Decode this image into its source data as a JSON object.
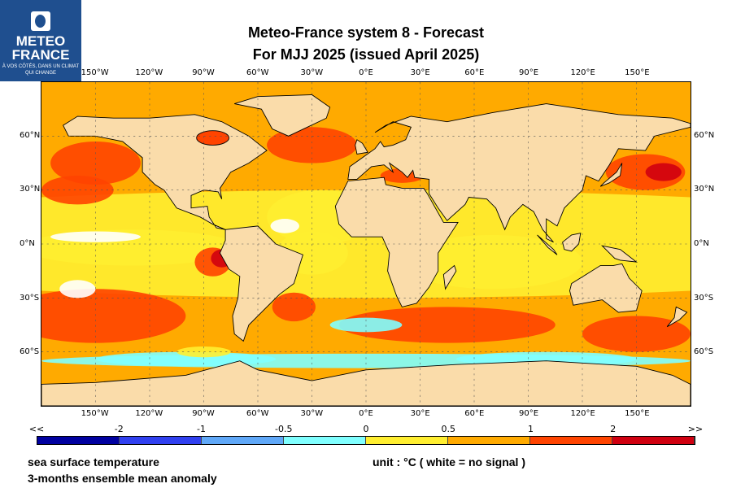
{
  "logo": {
    "name_line1": "METEO",
    "name_line2": "FRANCE",
    "tagline": "À VOS CÔTÉS, DANS UN CLIMAT QUI CHANGE"
  },
  "title": {
    "line1": "Meteo-France system 8  -  Forecast",
    "line2": "For MJJ 2025      (issued April 2025)"
  },
  "lon_labels": [
    "150°W",
    "120°W",
    "90°W",
    "60°W",
    "30°W",
    "0°E",
    "30°E",
    "60°E",
    "90°E",
    "120°E",
    "150°E"
  ],
  "lat_labels": [
    "60°N",
    "30°N",
    "0°N",
    "30°S",
    "60°S"
  ],
  "colorbar": {
    "labels": [
      "<<",
      "-2",
      "-1",
      "-0.5",
      "0",
      "0.5",
      "1",
      "2",
      ">>"
    ],
    "colors": [
      "#0000a0",
      "#3040f0",
      "#60a8f8",
      "#80ffff",
      "#ffee30",
      "#ffaa00",
      "#ff4400",
      "#d00010"
    ]
  },
  "map_colors": {
    "land": "#fadcaa",
    "white": "#ffffff"
  },
  "footer": {
    "variable": "sea surface temperature",
    "description": "3-months ensemble mean anomaly",
    "unit": "unit : °C  ( white = no signal )"
  }
}
